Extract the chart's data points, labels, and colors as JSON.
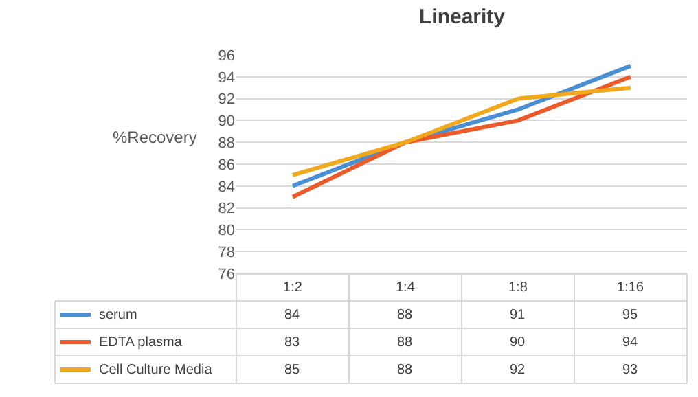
{
  "chart_data": {
    "type": "line",
    "title": "Linearity",
    "ylabel": "%Recovery",
    "categories": [
      "1:2",
      "1:4",
      "1:8",
      "1:16"
    ],
    "series": [
      {
        "name": "serum",
        "color": "#4a8fd4",
        "values": [
          84,
          88,
          91,
          95
        ]
      },
      {
        "name": "EDTA plasma",
        "color": "#ed5a2a",
        "values": [
          83,
          88,
          90,
          94
        ]
      },
      {
        "name": "Cell Culture Media",
        "color": "#f2a81d",
        "values": [
          85,
          88,
          92,
          93
        ]
      }
    ],
    "ylim": [
      76,
      96
    ],
    "yticks": [
      76,
      78,
      80,
      82,
      84,
      86,
      88,
      90,
      92,
      94,
      96
    ],
    "grid": "y",
    "legend": "bottom left",
    "data_labels": true,
    "line_style": "solid",
    "marker": "none"
  }
}
